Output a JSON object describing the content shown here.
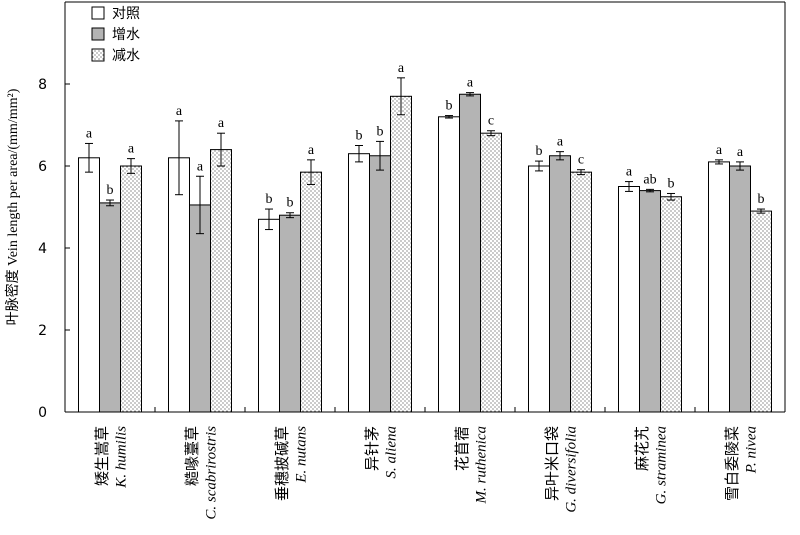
{
  "chart_data": {
    "type": "bar",
    "ylabel": "叶脉密度 Vein length per area/(mm/mm²)",
    "ylim": [
      0,
      10
    ],
    "y_ticks": [
      0,
      2,
      4,
      6,
      8
    ],
    "grid": false,
    "legend_position": "top-left",
    "categories": [
      {
        "cn": "矮生嵩草",
        "latin": "K. humilis"
      },
      {
        "cn": "糙喙薹草",
        "latin": "C. scabrirostris"
      },
      {
        "cn": "垂穗披碱草",
        "latin": "E. nutans"
      },
      {
        "cn": "异针茅",
        "latin": "S. aliena"
      },
      {
        "cn": "花苜蓿",
        "latin": "M. ruthenica"
      },
      {
        "cn": "异叶米口袋",
        "latin": "G. diversifolia"
      },
      {
        "cn": "麻花艽",
        "latin": "G. straminea"
      },
      {
        "cn": "雪白委陵菜",
        "latin": "P. nivea"
      }
    ],
    "series": [
      {
        "name": "对照",
        "fill": "#ffffff",
        "values": [
          6.2,
          6.2,
          4.7,
          6.3,
          7.2,
          6.0,
          5.5,
          6.1
        ],
        "errors": [
          0.35,
          0.9,
          0.25,
          0.2,
          0.03,
          0.12,
          0.12,
          0.05
        ],
        "letters": [
          "a",
          "a",
          "b",
          "b",
          "b",
          "b",
          "a",
          "a"
        ]
      },
      {
        "name": "增水",
        "fill": "#b4b4b4",
        "values": [
          5.1,
          5.05,
          4.8,
          6.25,
          7.75,
          6.25,
          5.4,
          6.0
        ],
        "errors": [
          0.07,
          0.7,
          0.06,
          0.35,
          0.04,
          0.1,
          0.03,
          0.1
        ],
        "letters": [
          "b",
          "a",
          "b",
          "b",
          "a",
          "a",
          "ab",
          "a"
        ]
      },
      {
        "name": "减水",
        "fill": "dots",
        "values": [
          6.0,
          6.4,
          5.85,
          7.7,
          6.8,
          5.85,
          5.25,
          4.9
        ],
        "errors": [
          0.18,
          0.4,
          0.3,
          0.45,
          0.06,
          0.06,
          0.08,
          0.05
        ],
        "letters": [
          "a",
          "a",
          "a",
          "a",
          "c",
          "c",
          "b",
          "b"
        ]
      }
    ]
  }
}
